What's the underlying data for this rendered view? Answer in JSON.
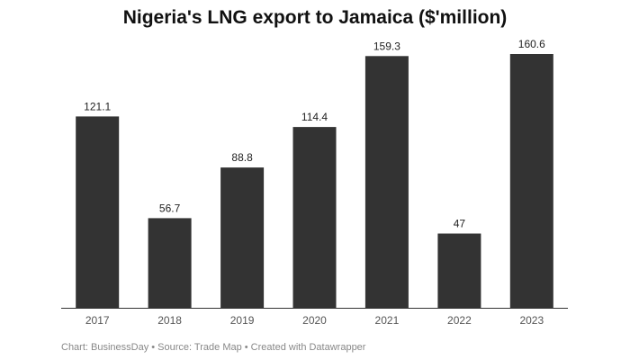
{
  "chart_data": {
    "type": "bar",
    "title": "Nigeria's LNG export to Jamaica ($'million)",
    "xlabel": "",
    "ylabel": "",
    "categories": [
      "2017",
      "2018",
      "2019",
      "2020",
      "2021",
      "2022",
      "2023"
    ],
    "values": [
      121.1,
      56.7,
      88.8,
      114.4,
      159.3,
      47,
      160.6
    ],
    "value_labels": [
      "121.1",
      "56.7",
      "88.8",
      "114.4",
      "159.3",
      "47",
      "160.6"
    ],
    "ylim": [
      0,
      160.6
    ],
    "grid": false,
    "legend": "none",
    "colors": {
      "bar": "#333333",
      "baseline": "#333333",
      "label": "#222222",
      "tick": "#555555"
    }
  },
  "footer": {
    "source": "Chart: BusinessDay • Source: Trade Map • Created with Datawrapper"
  }
}
